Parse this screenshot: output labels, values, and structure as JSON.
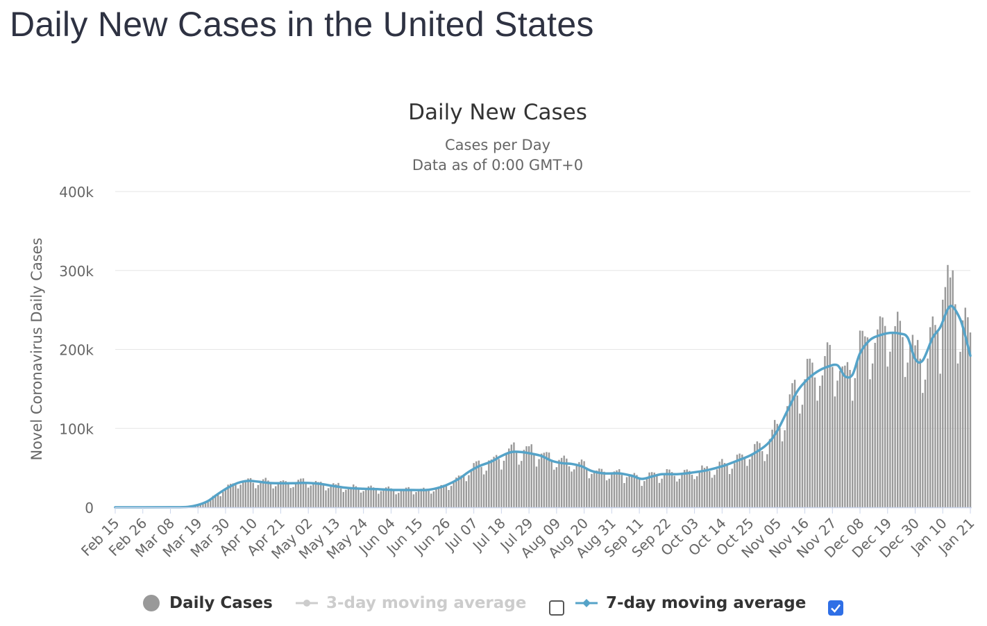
{
  "page": {
    "title": "Daily New Cases in the United States"
  },
  "legend": {
    "daily": "Daily Cases",
    "avg3": "3-day moving average",
    "avg7": "7-day moving average",
    "avg3_checked": false,
    "avg7_checked": true
  },
  "colors": {
    "bars": "#999999",
    "avg7": "#55a3c8",
    "avg3_disabled": "#cccccc",
    "grid": "#e6e6e6",
    "checkbox": "#2f6fe6"
  },
  "chart_data": {
    "type": "bar",
    "title": "Daily New Cases",
    "subtitle": [
      "Cases per Day",
      "Data as of 0:00 GMT+0"
    ],
    "ylabel": "Novel Coronavirus Daily Cases",
    "ylim": [
      0,
      400000
    ],
    "y_ticks": [
      0,
      100000,
      200000,
      300000,
      400000
    ],
    "y_tick_labels": [
      "0",
      "100k",
      "200k",
      "300k",
      "400k"
    ],
    "x_tick_labels": [
      "Feb 15",
      "Feb 26",
      "Mar 08",
      "Mar 19",
      "Mar 30",
      "Apr 10",
      "Apr 21",
      "May 02",
      "May 13",
      "May 24",
      "Jun 04",
      "Jun 15",
      "Jun 26",
      "Jul 07",
      "Jul 18",
      "Jul 29",
      "Aug 09",
      "Aug 20",
      "Aug 31",
      "Sep 11",
      "Sep 22",
      "Oct 03",
      "Oct 14",
      "Oct 25",
      "Nov 05",
      "Nov 16",
      "Nov 27",
      "Dec 08",
      "Dec 19",
      "Dec 30",
      "Jan 10",
      "Jan 21"
    ],
    "grid": true,
    "legend_position": "bottom",
    "start_date": "2020-02-15",
    "end_date": "2021-01-21",
    "series": [
      {
        "name": "7-day moving average",
        "type": "line",
        "points": [
          [
            "2020-02-15",
            0
          ],
          [
            "2020-03-08",
            100
          ],
          [
            "2020-03-15",
            600
          ],
          [
            "2020-03-19",
            3000
          ],
          [
            "2020-03-23",
            8000
          ],
          [
            "2020-03-27",
            17000
          ],
          [
            "2020-03-31",
            25000
          ],
          [
            "2020-04-04",
            31000
          ],
          [
            "2020-04-08",
            33500
          ],
          [
            "2020-04-12",
            32500
          ],
          [
            "2020-04-16",
            31000
          ],
          [
            "2020-04-20",
            30500
          ],
          [
            "2020-04-26",
            30500
          ],
          [
            "2020-04-30",
            31000
          ],
          [
            "2020-05-06",
            30000
          ],
          [
            "2020-05-12",
            27000
          ],
          [
            "2020-05-18",
            24500
          ],
          [
            "2020-05-24",
            23500
          ],
          [
            "2020-05-30",
            23000
          ],
          [
            "2020-06-05",
            22000
          ],
          [
            "2020-06-12",
            22000
          ],
          [
            "2020-06-18",
            22000
          ],
          [
            "2020-06-22",
            24000
          ],
          [
            "2020-06-26",
            28000
          ],
          [
            "2020-07-01",
            36000
          ],
          [
            "2020-07-05",
            45000
          ],
          [
            "2020-07-09",
            52000
          ],
          [
            "2020-07-14",
            58000
          ],
          [
            "2020-07-18",
            65000
          ],
          [
            "2020-07-22",
            70000
          ],
          [
            "2020-07-26",
            70000
          ],
          [
            "2020-07-30",
            68000
          ],
          [
            "2020-08-03",
            65000
          ],
          [
            "2020-08-07",
            59000
          ],
          [
            "2020-08-11",
            56000
          ],
          [
            "2020-08-15",
            55000
          ],
          [
            "2020-08-19",
            52000
          ],
          [
            "2020-08-23",
            46000
          ],
          [
            "2020-08-28",
            43000
          ],
          [
            "2020-09-03",
            43000
          ],
          [
            "2020-09-08",
            40000
          ],
          [
            "2020-09-12",
            36000
          ],
          [
            "2020-09-16",
            39000
          ],
          [
            "2020-09-20",
            42000
          ],
          [
            "2020-09-26",
            42000
          ],
          [
            "2020-10-02",
            44000
          ],
          [
            "2020-10-08",
            47000
          ],
          [
            "2020-10-14",
            52000
          ],
          [
            "2020-10-20",
            59000
          ],
          [
            "2020-10-26",
            67000
          ],
          [
            "2020-11-01",
            80000
          ],
          [
            "2020-11-05",
            97000
          ],
          [
            "2020-11-09",
            122000
          ],
          [
            "2020-11-13",
            147000
          ],
          [
            "2020-11-17",
            162000
          ],
          [
            "2020-11-21",
            172000
          ],
          [
            "2020-11-25",
            178000
          ],
          [
            "2020-11-29",
            180000
          ],
          [
            "2020-12-02",
            166000
          ],
          [
            "2020-12-05",
            168000
          ],
          [
            "2020-12-08",
            195000
          ],
          [
            "2020-12-12",
            212000
          ],
          [
            "2020-12-16",
            218000
          ],
          [
            "2020-12-20",
            221000
          ],
          [
            "2020-12-24",
            220000
          ],
          [
            "2020-12-27",
            215000
          ],
          [
            "2020-12-30",
            188000
          ],
          [
            "2021-01-02",
            186000
          ],
          [
            "2021-01-06",
            215000
          ],
          [
            "2021-01-09",
            228000
          ],
          [
            "2021-01-12",
            251000
          ],
          [
            "2021-01-14",
            254000
          ],
          [
            "2021-01-17",
            238000
          ],
          [
            "2021-01-19",
            217000
          ],
          [
            "2021-01-21",
            192000
          ]
        ]
      }
    ]
  }
}
